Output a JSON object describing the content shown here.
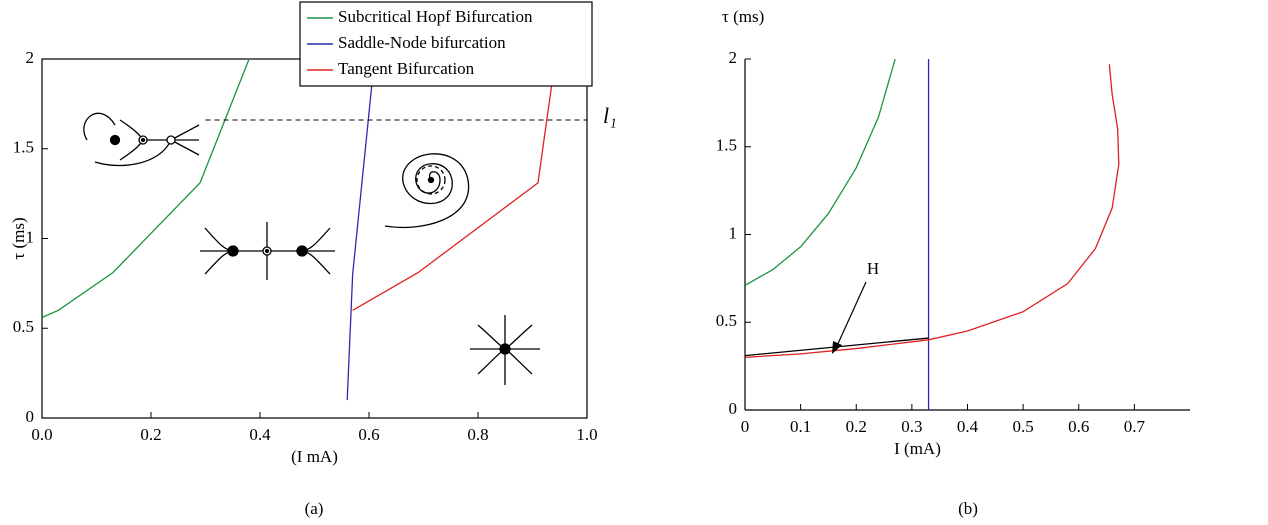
{
  "chart_data": [
    {
      "type": "line",
      "caption": "(a)",
      "xlabel": "(I mA)",
      "ylabel": "τ (ms)",
      "xlim": [
        0,
        1.0
      ],
      "ylim": [
        0,
        2
      ],
      "xticks": [
        {
          "value": 0,
          "label": "0.0"
        },
        0.2,
        0.4,
        0.6,
        0.8,
        {
          "value": 1.0,
          "label": "1.0"
        }
      ],
      "yticks": [
        0,
        0.5,
        1,
        1.5,
        2
      ],
      "series": [
        {
          "name": "Subcritical Hopf Bifurcation",
          "color": "#1a9641",
          "x": [
            0,
            0.03,
            0.13,
            0.29,
            0.38
          ],
          "values": [
            0.56,
            0.6,
            0.81,
            1.31,
            2.0
          ]
        },
        {
          "name": "Saddle-Node bifurcation",
          "color": "#2b2bb0",
          "x": [
            0.56,
            0.57,
            0.61
          ],
          "values": [
            0.1,
            0.8,
            2.0
          ]
        },
        {
          "name": "Tangent Bifurcation",
          "color": "#e02020",
          "x": [
            0.57,
            0.69,
            0.91,
            0.935
          ],
          "values": [
            0.6,
            0.81,
            1.31,
            1.85
          ]
        }
      ],
      "reference_line": {
        "label": "l₁",
        "y": 1.66
      }
    },
    {
      "type": "line",
      "caption": "(b)",
      "xlabel": "I (mA)",
      "ylabel": "τ (ms)",
      "xlim": [
        0,
        0.8
      ],
      "ylim": [
        0,
        2
      ],
      "xticks": [
        0,
        0.1,
        0.2,
        0.3,
        0.4,
        0.5,
        0.6,
        0.7
      ],
      "yticks": [
        0,
        0.5,
        1,
        1.5,
        2
      ],
      "series": [
        {
          "color": "#1a9641",
          "x": [
            0,
            0.05,
            0.1,
            0.15,
            0.2,
            0.24,
            0.27
          ],
          "values": [
            0.71,
            0.8,
            0.93,
            1.12,
            1.38,
            1.67,
            2.0
          ]
        },
        {
          "color": "#2b2bb0",
          "x": [
            0.33,
            0.33
          ],
          "values": [
            0,
            2
          ]
        },
        {
          "color": "#e02020",
          "x": [
            0,
            0.1,
            0.2,
            0.33,
            0.4,
            0.5,
            0.58,
            0.63,
            0.66,
            0.672,
            0.67,
            0.66,
            0.655
          ],
          "values": [
            0.3,
            0.32,
            0.35,
            0.4,
            0.45,
            0.56,
            0.72,
            0.92,
            1.15,
            1.4,
            1.6,
            1.8,
            1.97
          ]
        },
        {
          "color": "#000000",
          "x": [
            0,
            0.33
          ],
          "values": [
            0.31,
            0.41
          ]
        }
      ],
      "annotation": "H"
    }
  ]
}
